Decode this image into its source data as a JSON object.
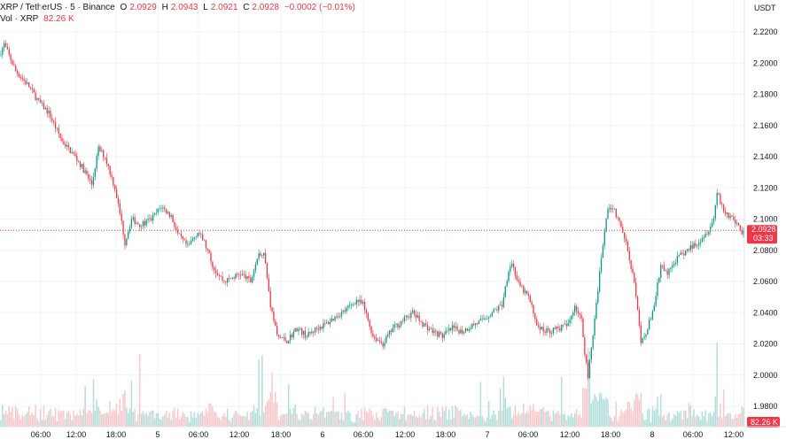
{
  "header": {
    "symbol": "XRP / TetherUS · 5 · Binance",
    "open_label": "O",
    "open": "2.0929",
    "high_label": "H",
    "high": "2.0943",
    "low_label": "L",
    "low": "2.0921",
    "close_label": "C",
    "close": "2.0928",
    "change": "−0.0002 (−0.01%)",
    "vol_label": "Vol · XRP",
    "vol_value": "82.26 K"
  },
  "price_scale": {
    "currency": "USDT",
    "last_price": "2.0928",
    "countdown": "03:33",
    "volume_tag": "82.26 K"
  },
  "colors": {
    "up": "#089981",
    "down": "#f23645",
    "up_volume": "#b2dfdb",
    "down_volume": "#f7c9cc",
    "grid": "#f0f3fa",
    "last_price_line": "#f23645"
  },
  "chart_data": {
    "type": "candlestick",
    "interval": "5",
    "ylim": [
      1.97,
      2.225
    ],
    "y_ticks": [
      "2.2200",
      "2.2000",
      "2.1800",
      "2.1600",
      "2.1400",
      "2.1200",
      "2.1000",
      "2.0800",
      "2.0600",
      "2.0400",
      "2.0200",
      "2.0000",
      "1.9800"
    ],
    "x_ticks": [
      "06:00",
      "12:00",
      "18:00",
      "5",
      "06:00",
      "12:00",
      "18:00",
      "6",
      "06:00",
      "12:00",
      "18:00",
      "7",
      "06:00",
      "12:00",
      "18:00",
      "8",
      "06:00",
      "12:00"
    ],
    "x_range": [
      "4 00:00",
      "8 14:15"
    ],
    "last_price": 2.0928,
    "grid": true,
    "price_path": [
      {
        "x": 0,
        "y": 2.205
      },
      {
        "x": 3,
        "y": 2.212
      },
      {
        "x": 10,
        "y": 2.195
      },
      {
        "x": 18,
        "y": 2.185
      },
      {
        "x": 24,
        "y": 2.175
      },
      {
        "x": 30,
        "y": 2.168
      },
      {
        "x": 38,
        "y": 2.15
      },
      {
        "x": 46,
        "y": 2.14
      },
      {
        "x": 52,
        "y": 2.13
      },
      {
        "x": 56,
        "y": 2.122
      },
      {
        "x": 60,
        "y": 2.145
      },
      {
        "x": 64,
        "y": 2.14
      },
      {
        "x": 70,
        "y": 2.12
      },
      {
        "x": 74,
        "y": 2.098
      },
      {
        "x": 76,
        "y": 2.085
      },
      {
        "x": 80,
        "y": 2.1
      },
      {
        "x": 86,
        "y": 2.096
      },
      {
        "x": 92,
        "y": 2.1
      },
      {
        "x": 98,
        "y": 2.108
      },
      {
        "x": 104,
        "y": 2.102
      },
      {
        "x": 108,
        "y": 2.09
      },
      {
        "x": 114,
        "y": 2.082
      },
      {
        "x": 120,
        "y": 2.092
      },
      {
        "x": 124,
        "y": 2.085
      },
      {
        "x": 130,
        "y": 2.068
      },
      {
        "x": 136,
        "y": 2.06
      },
      {
        "x": 140,
        "y": 2.062
      },
      {
        "x": 146,
        "y": 2.065
      },
      {
        "x": 152,
        "y": 2.06
      },
      {
        "x": 156,
        "y": 2.075
      },
      {
        "x": 160,
        "y": 2.08
      },
      {
        "x": 164,
        "y": 2.045
      },
      {
        "x": 168,
        "y": 2.025
      },
      {
        "x": 174,
        "y": 2.022
      },
      {
        "x": 180,
        "y": 2.03
      },
      {
        "x": 186,
        "y": 2.025
      },
      {
        "x": 192,
        "y": 2.03
      },
      {
        "x": 198,
        "y": 2.033
      },
      {
        "x": 204,
        "y": 2.038
      },
      {
        "x": 210,
        "y": 2.042
      },
      {
        "x": 216,
        "y": 2.048
      },
      {
        "x": 220,
        "y": 2.045
      },
      {
        "x": 226,
        "y": 2.025
      },
      {
        "x": 232,
        "y": 2.02
      },
      {
        "x": 238,
        "y": 2.03
      },
      {
        "x": 244,
        "y": 2.035
      },
      {
        "x": 250,
        "y": 2.04
      },
      {
        "x": 256,
        "y": 2.033
      },
      {
        "x": 262,
        "y": 2.028
      },
      {
        "x": 268,
        "y": 2.025
      },
      {
        "x": 274,
        "y": 2.03
      },
      {
        "x": 280,
        "y": 2.028
      },
      {
        "x": 286,
        "y": 2.032
      },
      {
        "x": 292,
        "y": 2.035
      },
      {
        "x": 298,
        "y": 2.04
      },
      {
        "x": 304,
        "y": 2.045
      },
      {
        "x": 308,
        "y": 2.068
      },
      {
        "x": 310,
        "y": 2.072
      },
      {
        "x": 314,
        "y": 2.058
      },
      {
        "x": 320,
        "y": 2.05
      },
      {
        "x": 326,
        "y": 2.03
      },
      {
        "x": 332,
        "y": 2.028
      },
      {
        "x": 338,
        "y": 2.03
      },
      {
        "x": 344,
        "y": 2.032
      },
      {
        "x": 348,
        "y": 2.045
      },
      {
        "x": 352,
        "y": 2.035
      },
      {
        "x": 354,
        "y": 2.015
      },
      {
        "x": 356,
        "y": 2.0
      },
      {
        "x": 360,
        "y": 2.035
      },
      {
        "x": 364,
        "y": 2.075
      },
      {
        "x": 368,
        "y": 2.108
      },
      {
        "x": 372,
        "y": 2.105
      },
      {
        "x": 376,
        "y": 2.095
      },
      {
        "x": 380,
        "y": 2.08
      },
      {
        "x": 384,
        "y": 2.06
      },
      {
        "x": 386,
        "y": 2.04
      },
      {
        "x": 388,
        "y": 2.02
      },
      {
        "x": 392,
        "y": 2.03
      },
      {
        "x": 396,
        "y": 2.045
      },
      {
        "x": 400,
        "y": 2.07
      },
      {
        "x": 404,
        "y": 2.065
      },
      {
        "x": 410,
        "y": 2.075
      },
      {
        "x": 416,
        "y": 2.08
      },
      {
        "x": 422,
        "y": 2.085
      },
      {
        "x": 428,
        "y": 2.092
      },
      {
        "x": 432,
        "y": 2.1
      },
      {
        "x": 434,
        "y": 2.118
      },
      {
        "x": 438,
        "y": 2.105
      },
      {
        "x": 444,
        "y": 2.1
      },
      {
        "x": 448,
        "y": 2.092
      }
    ]
  }
}
